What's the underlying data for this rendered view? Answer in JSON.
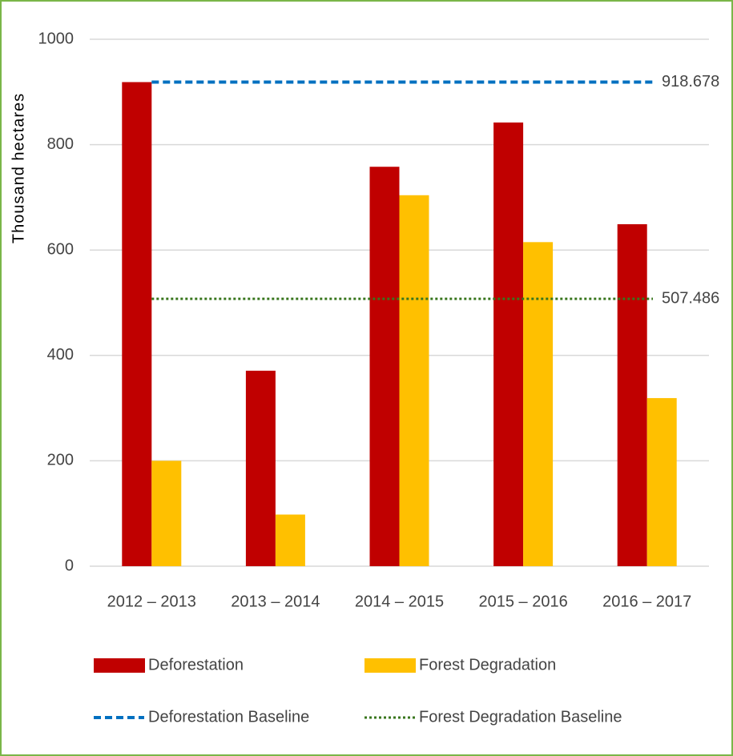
{
  "chart_data": {
    "type": "bar",
    "y_label": "Thousand hectares",
    "categories": [
      "2012 – 2013",
      "2013 – 2014",
      "2014 – 2015",
      "2015 – 2016",
      "2016 – 2017"
    ],
    "series": [
      {
        "name": "Deforestation",
        "color": "#c00000",
        "values": [
          918.678,
          371,
          758,
          842,
          649
        ]
      },
      {
        "name": "Forest Degradation",
        "color": "#ffc000",
        "values": [
          200,
          98,
          704,
          615,
          319
        ]
      }
    ],
    "baselines": [
      {
        "name": "Deforestation Baseline",
        "color": "#0070c0",
        "style": "dashed",
        "value": 918.678
      },
      {
        "name": "Forest Degradation Baseline",
        "color": "#38761d",
        "style": "dotted",
        "value": 507.486
      }
    ],
    "ylim": [
      0,
      1000
    ],
    "yticks": [
      0,
      200,
      400,
      600,
      800,
      1000
    ],
    "grid": true
  }
}
